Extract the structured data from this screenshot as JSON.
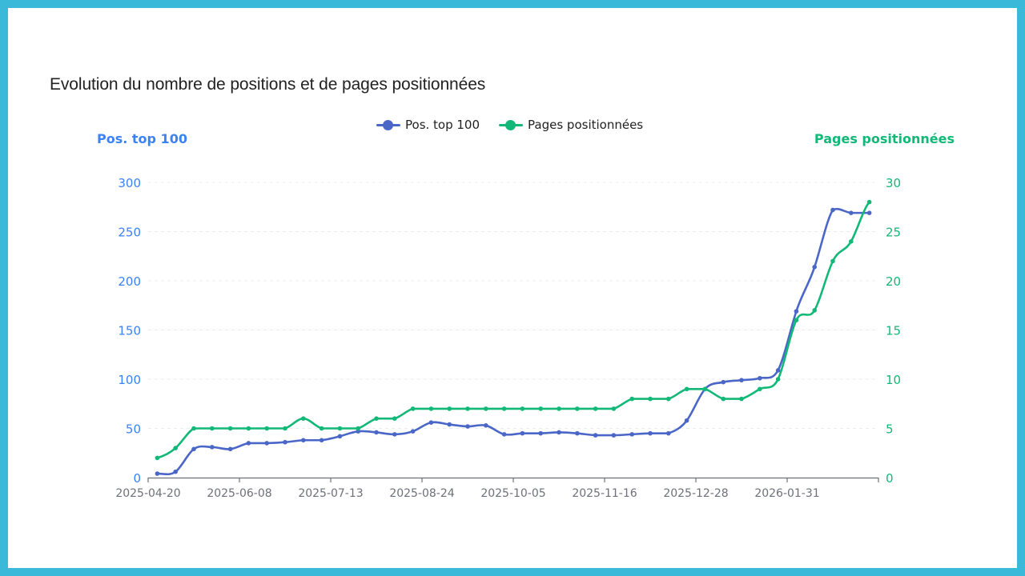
{
  "page": {
    "background": "#3bb9d9",
    "title": "Evolution du nombre de positions et de pages positionnées"
  },
  "legend": [
    {
      "label": "Pos. top 100",
      "color": "#4a66c7"
    },
    {
      "label": "Pages positionnées",
      "color": "#12b877"
    }
  ],
  "axes": {
    "left_title": "Pos. top 100",
    "left_color": "#3b82f6",
    "right_title": "Pages positionnées",
    "right_color": "#12b877"
  },
  "chart_data": {
    "type": "line",
    "title": "Evolution du nombre de positions et de pages positionnées",
    "xlabel": "",
    "ylabel": "Pos. top 100",
    "y2label": "Pages positionnées",
    "ylim": [
      0,
      300
    ],
    "y2lim": [
      0,
      30
    ],
    "yticks": [
      0,
      50,
      100,
      150,
      200,
      250,
      300
    ],
    "y2ticks": [
      0,
      5,
      10,
      15,
      20,
      25,
      30
    ],
    "grid": true,
    "legend_position": "top",
    "x_tick_labels": [
      "2025-04-20",
      "2025-06-08",
      "2025-07-13",
      "2025-08-24",
      "2025-10-05",
      "2025-11-16",
      "2025-12-28",
      "2026-01-31"
    ],
    "x_tick_every": 5,
    "n_points": 40,
    "series": [
      {
        "name": "Pos. top 100",
        "axis": "left",
        "color": "#4a66c7",
        "values": [
          4,
          6,
          29,
          31,
          29,
          35,
          35,
          36,
          38,
          38,
          42,
          47,
          46,
          44,
          47,
          56,
          54,
          52,
          53,
          44,
          45,
          45,
          46,
          45,
          43,
          43,
          44,
          45,
          45,
          58,
          90,
          97,
          99,
          101,
          109,
          169,
          214,
          272,
          269,
          269
        ]
      },
      {
        "name": "Pages positionnées",
        "axis": "right",
        "color": "#12b877",
        "values": [
          2,
          3,
          5,
          5,
          5,
          5,
          5,
          5,
          6,
          5,
          5,
          5,
          6,
          6,
          7,
          7,
          7,
          7,
          7,
          7,
          7,
          7,
          7,
          7,
          7,
          7,
          8,
          8,
          8,
          9,
          9,
          8,
          8,
          9,
          10,
          16,
          17,
          22,
          24,
          28
        ]
      }
    ]
  }
}
